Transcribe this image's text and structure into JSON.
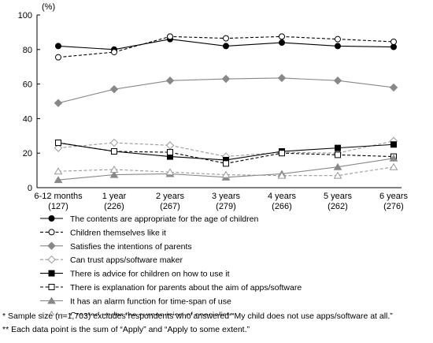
{
  "chart_data": {
    "type": "line",
    "y_unit": "(%)",
    "ylim": [
      0,
      100
    ],
    "yticks": [
      "0",
      "20",
      "40",
      "60",
      "80",
      "100"
    ],
    "categories": [
      {
        "label": "6-12 months",
        "n": "(127)"
      },
      {
        "label": "1 year",
        "n": "(226)"
      },
      {
        "label": "2 years",
        "n": "(267)"
      },
      {
        "label": "3 years",
        "n": "(279)"
      },
      {
        "label": "4 years",
        "n": "(266)"
      },
      {
        "label": "5 years",
        "n": "(262)"
      },
      {
        "label": "6 years",
        "n": "(276)"
      }
    ],
    "grid": false,
    "legend_position": "bottom",
    "series": [
      {
        "name": "The contents are appropriate for the age of children",
        "values": [
          82,
          80,
          86,
          82,
          84,
          82,
          81.5
        ],
        "color": "#000000",
        "dash": "solid",
        "marker": "circle",
        "filled": true
      },
      {
        "name": "Children themselves like it",
        "values": [
          75.5,
          78.5,
          87.5,
          86.5,
          87.5,
          86,
          84.5
        ],
        "color": "#000000",
        "dash": "dashed",
        "marker": "circle",
        "filled": false
      },
      {
        "name": "Satisfies the intentions of parents",
        "values": [
          49,
          57,
          62,
          63,
          63.5,
          62,
          58
        ],
        "color": "#888888",
        "dash": "solid",
        "marker": "diamond",
        "filled": true
      },
      {
        "name": "Can trust apps/software maker",
        "values": [
          23,
          26,
          24.5,
          18,
          20.5,
          20,
          27
        ],
        "color": "#999999",
        "dash": "dashed",
        "marker": "diamond",
        "filled": false
      },
      {
        "name": "There is advice for children on how to use it",
        "values": [
          26,
          21,
          18,
          16,
          21,
          23,
          25
        ],
        "color": "#000000",
        "dash": "solid",
        "marker": "square",
        "filled": true
      },
      {
        "name": "There is explanation for parents about the aim of apps/software",
        "values": [
          26,
          21,
          20.5,
          14,
          20,
          19,
          18
        ],
        "color": "#000000",
        "dash": "dashed",
        "marker": "square",
        "filled": false
      },
      {
        "name": "It has an alarm function for time-span of use",
        "values": [
          4.5,
          7.5,
          8,
          6,
          8,
          12,
          17
        ],
        "color": "#888888",
        "dash": "solid",
        "marker": "triangle",
        "filled": true
      },
      {
        "name": "Created under the surpervision of specialists",
        "values": [
          9.5,
          10.5,
          9,
          7.5,
          7,
          7,
          12
        ],
        "color": "#999999",
        "dash": "dashed",
        "marker": "triangle",
        "filled": false
      }
    ]
  },
  "notes": {
    "note1": "* Sample size (n=1,703) excludes respondents who answered “My child does not use apps/software at all.”",
    "note2": "** Each data point is the sum of “Apply” and “Apply to some extent.”"
  }
}
